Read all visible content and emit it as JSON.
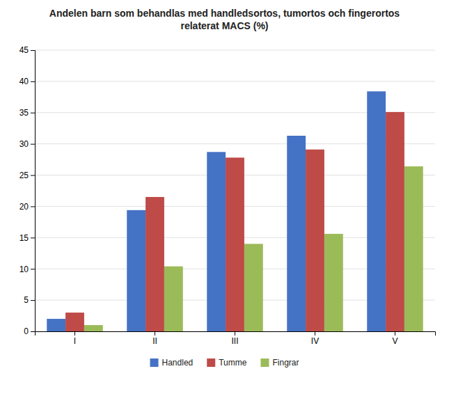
{
  "chart_data": {
    "type": "bar",
    "title": "Andelen barn som behandlas med handledsortos, tumortos och fingerortos\nrelaterat MACS (%)",
    "categories": [
      "I",
      "II",
      "III",
      "IV",
      "V"
    ],
    "series": [
      {
        "name": "Handled",
        "color": "#4472C4",
        "values": [
          2.0,
          19.4,
          28.7,
          31.3,
          38.4
        ]
      },
      {
        "name": "Tumme",
        "color": "#BE4B48",
        "values": [
          3.0,
          21.5,
          27.8,
          29.1,
          35.1
        ]
      },
      {
        "name": "Fingrar",
        "color": "#9BBB59",
        "values": [
          1.0,
          10.4,
          14.0,
          15.6,
          26.4
        ]
      }
    ],
    "ylim": [
      0,
      45
    ],
    "yticks": [
      0,
      5,
      10,
      15,
      20,
      25,
      30,
      35,
      40,
      45
    ],
    "grid": true,
    "legend": "bottom"
  }
}
